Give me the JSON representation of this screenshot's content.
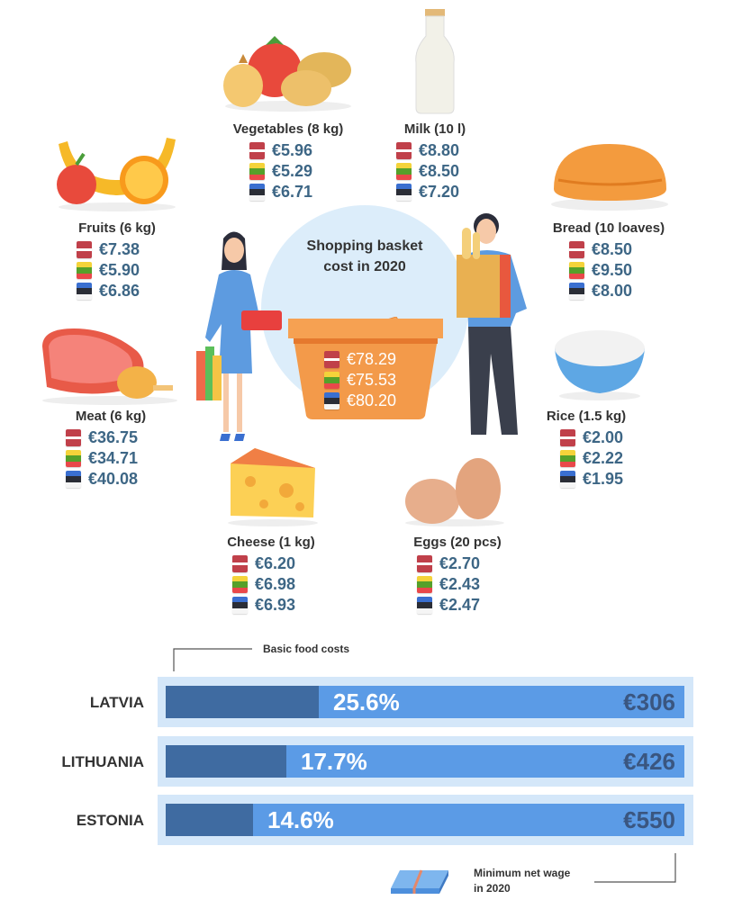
{
  "flags": {
    "latvia": [
      "#c0404a",
      "#ffffff",
      "#c0404a"
    ],
    "lithuania": [
      "#f4d33a",
      "#55a02a",
      "#e9484a"
    ],
    "estonia": [
      "#3a6fd0",
      "#2a2d36",
      "#f5f5f5"
    ]
  },
  "items": [
    {
      "id": "vegetables",
      "label": "Vegetables (8 kg)",
      "icon": "vegetables-icon",
      "prices": [
        "€5.96",
        "€5.29",
        "€6.71"
      ]
    },
    {
      "id": "milk",
      "label": "Milk (10 l)",
      "icon": "milk-bottle-icon",
      "prices": [
        "€8.80",
        "€8.50",
        "€7.20"
      ]
    },
    {
      "id": "fruits",
      "label": "Fruits (6 kg)",
      "icon": "fruits-icon",
      "prices": [
        "€7.38",
        "€5.90",
        "€6.86"
      ]
    },
    {
      "id": "bread",
      "label": "Bread (10 loaves)",
      "icon": "bread-icon",
      "prices": [
        "€8.50",
        "€9.50",
        "€8.00"
      ]
    },
    {
      "id": "meat",
      "label": "Meat (6 kg)",
      "icon": "meat-icon",
      "prices": [
        "€36.75",
        "€34.71",
        "€40.08"
      ]
    },
    {
      "id": "rice",
      "label": "Rice (1.5 kg)",
      "icon": "rice-bowl-icon",
      "prices": [
        "€2.00",
        "€2.22",
        "€1.95"
      ]
    },
    {
      "id": "cheese",
      "label": "Cheese (1 kg)",
      "icon": "cheese-icon",
      "prices": [
        "€6.20",
        "€6.98",
        "€6.93"
      ]
    },
    {
      "id": "eggs",
      "label": "Eggs (20 pcs)",
      "icon": "eggs-icon",
      "prices": [
        "€2.70",
        "€2.43",
        "€2.47"
      ]
    }
  ],
  "basket": {
    "title": "Shopping basket cost in 2020",
    "prices": [
      "€78.29",
      "€75.53",
      "€80.20"
    ]
  },
  "colors": {
    "bar_outer": "#d4e7f9",
    "wage_bar": "#5b9be6",
    "food_bar": "#3f6ba1",
    "basket": "#f39a4a",
    "circle": "#dcedfa"
  },
  "chart_data": {
    "type": "bar",
    "orientation": "horizontal",
    "categories": [
      "LATVIA",
      "LITHUANIA",
      "ESTONIA"
    ],
    "series": [
      {
        "name": "Basic food costs",
        "values": [
          25.6,
          17.7,
          14.6
        ],
        "labels": [
          "25.6%",
          "17.7%",
          "14.6%"
        ]
      },
      {
        "name": "Minimum net wage in 2020",
        "values": [
          306,
          426,
          550
        ],
        "labels": [
          "€306",
          "€426",
          "€550"
        ]
      }
    ],
    "annotations": {
      "food_costs": "Basic food costs",
      "wage_line1": "Minimum net wage",
      "wage_line2": "in 2020"
    }
  }
}
